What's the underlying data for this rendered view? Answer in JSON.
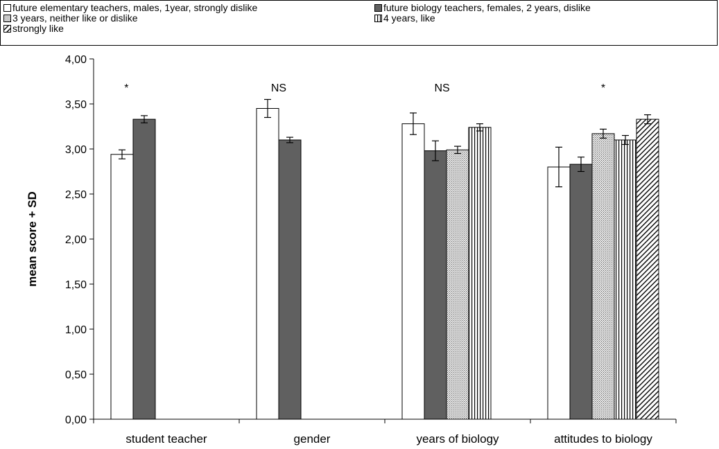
{
  "chart_data": {
    "type": "bar",
    "ylabel": "mean score + SD",
    "xlabel": "",
    "ylim": [
      0,
      4
    ],
    "yticks": [
      "0,00",
      "0,50",
      "1,00",
      "1,50",
      "2,00",
      "2,50",
      "3,00",
      "3,50",
      "4,00"
    ],
    "legend_position": "top",
    "legend": [
      "future elementary teachers, males, 1year, strongly dislike",
      "future biology teachers, females, 2 years, dislike",
      "3 years, neither like or dislike",
      "4 years, like",
      "strongly like"
    ],
    "categories": [
      {
        "label": "student teacher",
        "significance": "*",
        "bars": [
          {
            "value": 2.94,
            "sd": 0.05
          },
          {
            "value": 3.33,
            "sd": 0.04
          }
        ]
      },
      {
        "label": "gender",
        "significance": "NS",
        "bars": [
          {
            "value": 3.45,
            "sd": 0.1
          },
          {
            "value": 3.1,
            "sd": 0.03
          }
        ]
      },
      {
        "label": "years of biology",
        "significance": "NS",
        "bars": [
          {
            "value": 3.28,
            "sd": 0.12
          },
          {
            "value": 2.98,
            "sd": 0.11
          },
          {
            "value": 2.99,
            "sd": 0.04
          },
          {
            "value": 3.24,
            "sd": 0.04
          }
        ]
      },
      {
        "label": "attitudes to biology",
        "significance": "*",
        "bars": [
          {
            "value": 2.8,
            "sd": 0.22
          },
          {
            "value": 2.83,
            "sd": 0.08
          },
          {
            "value": 3.17,
            "sd": 0.05
          },
          {
            "value": 3.1,
            "sd": 0.05
          },
          {
            "value": 3.33,
            "sd": 0.05
          }
        ]
      }
    ]
  }
}
